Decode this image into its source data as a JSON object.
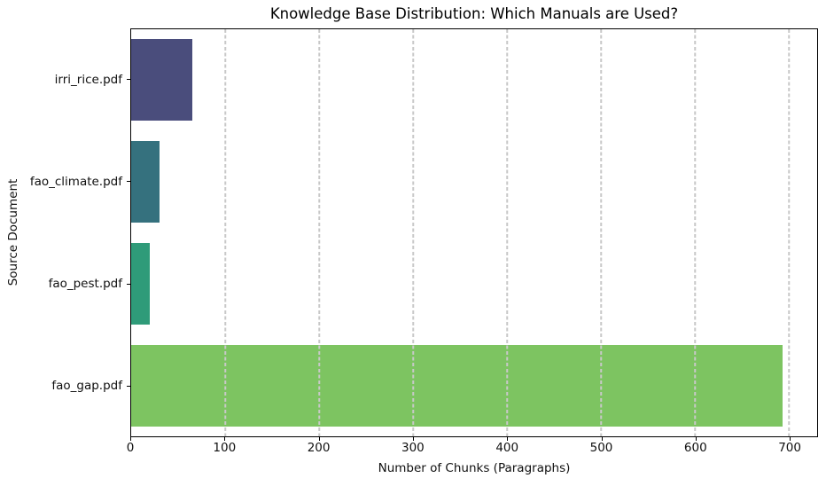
{
  "chart_data": {
    "type": "bar",
    "orientation": "horizontal",
    "title": "Knowledge Base Distribution: Which Manuals are Used?",
    "xlabel": "Number of Chunks (Paragraphs)",
    "ylabel": "Source Document",
    "categories": [
      "irri_rice.pdf",
      "fao_climate.pdf",
      "fao_pest.pdf",
      "fao_gap.pdf"
    ],
    "values": [
      65,
      30,
      20,
      693
    ],
    "bar_colors": [
      "#4a4d7c",
      "#35717e",
      "#2f9b79",
      "#7dc461"
    ],
    "xlim": [
      0,
      730
    ],
    "xticks": [
      0,
      100,
      200,
      300,
      400,
      500,
      600,
      700
    ],
    "grid": "vertical dashed gridlines at x ticks, drawn above bars",
    "legend": "none",
    "background": "#ffffff",
    "spines": "all four visible, black"
  }
}
